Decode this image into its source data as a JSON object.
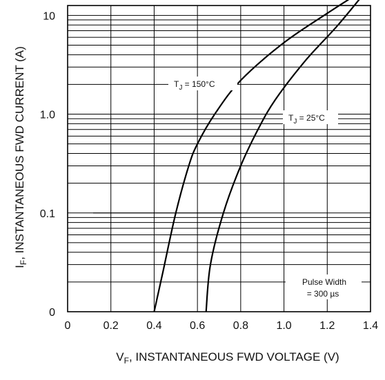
{
  "chart_data": {
    "type": "line",
    "title": "",
    "xlabel": {
      "main": "V",
      "sub": "F",
      "rest": ", INSTANTANEOUS FWD VOLTAGE (V)"
    },
    "ylabel": {
      "main": "I",
      "sub": "F",
      "rest": ", INSTANTANEOUS FWD CURRENT (A)"
    },
    "xlim": [
      0,
      1.4
    ],
    "x_ticks": [
      0,
      0.2,
      0.4,
      0.6,
      0.8,
      1.0,
      1.2,
      1.4
    ],
    "x_tick_labels": [
      "0",
      "0.2",
      "0.4",
      "0.6",
      "0.8",
      "1.0",
      "1.2",
      "1.4"
    ],
    "y_scale": "log",
    "y_decade_labels": [
      "0",
      "0.1",
      "1.0",
      "10"
    ],
    "grid": true,
    "series": [
      {
        "label_main": "T",
        "label_sub": "J",
        "label_rest": " =  150°C",
        "points": [
          [
            0.4,
            0.01
          ],
          [
            0.44,
            0.025
          ],
          [
            0.5,
            0.1
          ],
          [
            0.56,
            0.3
          ],
          [
            0.6,
            0.5
          ],
          [
            0.68,
            1.0
          ],
          [
            0.8,
            2.2
          ],
          [
            1.0,
            5.3
          ],
          [
            1.2,
            10.5
          ],
          [
            1.4,
            20
          ]
        ]
      },
      {
        "label_main": "T",
        "label_sub": "J",
        "label_rest": " =  25°C",
        "points": [
          [
            0.64,
            0.01
          ],
          [
            0.66,
            0.03
          ],
          [
            0.72,
            0.1
          ],
          [
            0.8,
            0.3
          ],
          [
            0.88,
            0.7
          ],
          [
            0.96,
            1.4
          ],
          [
            1.1,
            3.5
          ],
          [
            1.25,
            8.0
          ],
          [
            1.4,
            20
          ]
        ]
      }
    ],
    "annotation": {
      "line1": "Pulse Width",
      "line2": "=  300 µs"
    }
  }
}
